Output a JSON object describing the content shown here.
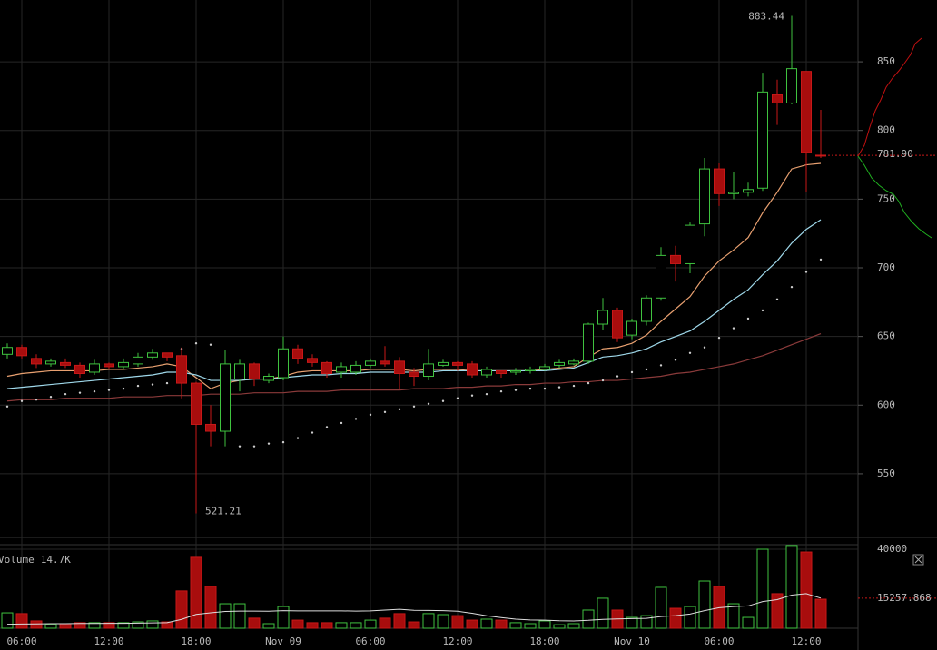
{
  "chart_data": [
    {
      "type": "candlestick",
      "categories": [
        null,
        "06:00",
        null,
        null,
        null,
        null,
        null,
        "12:00",
        null,
        null,
        null,
        null,
        null,
        "18:00",
        null,
        null,
        null,
        null,
        null,
        "Nov 09",
        null,
        null,
        null,
        null,
        null,
        "06:00",
        null,
        null,
        null,
        null,
        null,
        "12:00",
        null,
        null,
        null,
        null,
        null,
        "18:00",
        null,
        null,
        null,
        null,
        null,
        "Nov 10",
        null,
        null,
        null,
        null,
        null,
        "06:00",
        null,
        null,
        null,
        null,
        null,
        "12:00",
        null
      ],
      "open": [
        637,
        642,
        634,
        630,
        631,
        629,
        624,
        630,
        628,
        630,
        635,
        638,
        636,
        616,
        586,
        581,
        619,
        630,
        618,
        620,
        641,
        634,
        631,
        624,
        624,
        629,
        632,
        632,
        624,
        621,
        629,
        631,
        630,
        622,
        625,
        624,
        625,
        626,
        629,
        630,
        632,
        659,
        669,
        651,
        661,
        678,
        709,
        703,
        732,
        772,
        754,
        755,
        758,
        826,
        820,
        843,
        782
      ],
      "high": [
        645,
        644,
        637,
        634,
        634,
        631,
        633,
        631,
        634,
        638,
        641,
        638,
        642,
        617,
        600,
        640,
        633,
        631,
        623,
        650,
        644,
        637,
        632,
        631,
        632,
        634,
        643,
        635,
        627,
        641,
        633,
        632,
        632,
        628,
        625,
        627,
        628,
        630,
        633,
        634,
        660,
        678,
        671,
        663,
        680,
        715,
        716,
        733,
        780,
        776,
        770,
        762,
        842,
        837,
        883.44,
        843,
        815
      ],
      "low": [
        634,
        634,
        627,
        628,
        627,
        620,
        622,
        626,
        626,
        628,
        633,
        632,
        605,
        521.21,
        570,
        570,
        610,
        614,
        616,
        618,
        630,
        628,
        620,
        620,
        622,
        627,
        628,
        612,
        614,
        618,
        628,
        625,
        620,
        620,
        620,
        622,
        623,
        625,
        627,
        629,
        630,
        655,
        646,
        648,
        658,
        676,
        690,
        696,
        723,
        745,
        750,
        752,
        756,
        804,
        819,
        755,
        780
      ],
      "close": [
        642,
        636,
        630,
        632,
        629,
        623,
        630,
        628,
        631,
        635,
        638,
        635,
        616,
        586,
        581,
        630,
        630,
        619,
        621,
        641,
        634,
        631,
        623,
        628,
        629,
        632,
        630,
        623,
        621,
        630,
        631,
        629,
        622,
        626,
        623,
        625,
        626,
        628,
        631,
        632,
        659,
        669,
        649,
        661,
        678,
        709,
        703,
        731,
        772,
        754,
        755,
        757,
        828,
        820,
        845,
        784,
        781.9
      ],
      "close_labels": [
        null,
        null,
        null,
        null,
        null,
        null,
        null,
        null,
        null,
        null,
        null,
        null,
        null,
        null,
        null,
        null,
        null,
        null,
        null,
        null,
        null,
        null,
        null,
        null,
        null,
        null,
        null,
        null,
        null,
        null,
        null,
        null,
        null,
        null,
        null,
        null,
        null,
        null,
        null,
        null,
        null,
        null,
        null,
        null,
        null,
        null,
        null,
        null,
        null,
        null,
        null,
        null,
        null,
        null,
        null,
        null,
        "781.90"
      ],
      "ylim": [
        505,
        895
      ],
      "yticks": [
        550,
        600,
        650,
        700,
        750,
        800,
        850
      ],
      "grid": true,
      "up_color": "#3fc23f",
      "down_color": "#a80d0d",
      "series": [
        {
          "style": "line",
          "color": "#e8a070",
          "values": [
            621,
            623,
            624,
            625,
            625,
            625,
            625,
            626,
            626,
            627,
            628,
            630,
            628,
            620,
            612,
            616,
            618,
            619,
            619,
            621,
            624,
            625,
            625,
            625,
            625,
            626,
            626,
            626,
            625,
            626,
            626,
            626,
            625,
            625,
            625,
            625,
            625,
            626,
            627,
            628,
            635,
            641,
            642,
            645,
            651,
            661,
            670,
            679,
            694,
            705,
            713,
            722,
            740,
            755,
            772,
            775,
            776
          ]
        },
        {
          "style": "line",
          "color": "#9fd8ea",
          "values": [
            612,
            613,
            614,
            615,
            616,
            617,
            618,
            619,
            620,
            621,
            622,
            624,
            624,
            622,
            618,
            618,
            618,
            619,
            619,
            620,
            621,
            622,
            622,
            623,
            623,
            624,
            624,
            624,
            624,
            624,
            625,
            625,
            625,
            625,
            625,
            625,
            625,
            625,
            626,
            627,
            631,
            635,
            636,
            638,
            641,
            646,
            650,
            654,
            661,
            669,
            677,
            684,
            695,
            705,
            718,
            728,
            735
          ]
        },
        {
          "style": "line",
          "color": "#8a3a3a",
          "values": [
            603,
            604,
            604,
            604,
            605,
            605,
            605,
            605,
            606,
            606,
            606,
            607,
            607,
            607,
            608,
            608,
            608,
            609,
            609,
            609,
            610,
            610,
            610,
            611,
            611,
            611,
            611,
            611,
            612,
            612,
            612,
            613,
            613,
            614,
            614,
            615,
            615,
            616,
            616,
            617,
            617,
            618,
            618,
            619,
            620,
            621,
            623,
            624,
            626,
            628,
            630,
            633,
            636,
            640,
            644,
            648,
            652
          ]
        },
        {
          "style": "dots",
          "color": "#cccccc",
          "values": [
            599,
            603,
            604,
            606,
            608,
            609,
            610,
            611,
            612,
            614,
            615,
            616,
            641,
            645,
            644,
            null,
            570,
            570,
            572,
            573,
            576,
            580,
            584,
            587,
            590,
            593,
            595,
            597,
            599,
            601,
            603,
            605,
            607,
            608,
            610,
            611,
            612,
            612,
            613,
            614,
            616,
            618,
            621,
            624,
            626,
            629,
            633,
            638,
            642,
            649,
            656,
            663,
            669,
            677,
            686,
            697,
            706
          ]
        }
      ]
    },
    {
      "type": "bar",
      "title": "Volume",
      "values": [
        7800,
        7400,
        3700,
        1800,
        2300,
        2800,
        2800,
        2800,
        2800,
        3200,
        3700,
        3200,
        18900,
        35900,
        21200,
        12400,
        12400,
        5100,
        2300,
        11000,
        4100,
        2800,
        2800,
        2800,
        2800,
        4100,
        5100,
        7400,
        3200,
        7400,
        6900,
        6400,
        4100,
        4600,
        4100,
        2800,
        2300,
        3700,
        1800,
        2300,
        9200,
        15200,
        9200,
        5500,
        6400,
        20700,
        10100,
        11000,
        23900,
        21200,
        12400,
        5500,
        40000,
        17500,
        41900,
        38600,
        14700
      ],
      "value_labels": [
        null,
        null,
        null,
        null,
        null,
        null,
        null,
        null,
        null,
        null,
        null,
        null,
        null,
        null,
        null,
        null,
        null,
        null,
        null,
        null,
        null,
        null,
        null,
        null,
        null,
        null,
        null,
        null,
        null,
        null,
        null,
        null,
        null,
        null,
        null,
        null,
        null,
        null,
        null,
        null,
        null,
        null,
        null,
        null,
        null,
        null,
        null,
        null,
        null,
        null,
        null,
        null,
        null,
        null,
        null,
        null,
        "14.7K"
      ],
      "ylim": [
        0,
        42300
      ],
      "yticks": [
        40000
      ],
      "series": [
        {
          "style": "line",
          "color": "#dddddd",
          "values": [
            2000,
            2100,
            2200,
            2300,
            2300,
            2400,
            2400,
            2500,
            2500,
            2600,
            2700,
            2800,
            4500,
            7000,
            7800,
            8500,
            8700,
            8700,
            8600,
            8900,
            8800,
            8800,
            8800,
            8800,
            8700,
            8800,
            9200,
            9600,
            9100,
            9000,
            8900,
            8600,
            7600,
            6300,
            5400,
            4600,
            4200,
            4100,
            3800,
            3700,
            4000,
            4500,
            4700,
            4900,
            5000,
            5900,
            6400,
            7200,
            8900,
            10400,
            11000,
            11300,
            13500,
            14500,
            16800,
            17500,
            15257.868
          ]
        }
      ]
    }
  ]
}
